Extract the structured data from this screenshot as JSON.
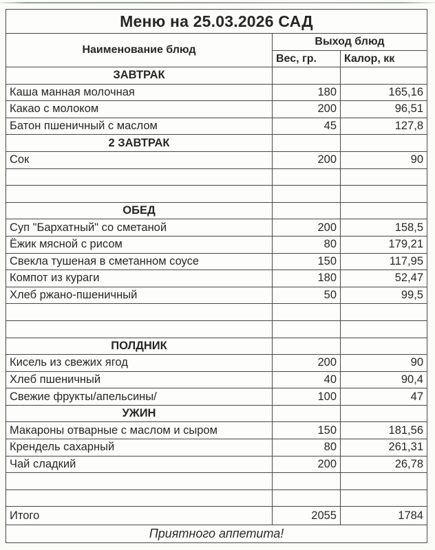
{
  "title": "Меню на 25.03.2026 САД",
  "columns": {
    "name": "Наименование блюд",
    "output_group": "Выход блюд",
    "weight": "Вес, гр.",
    "calories": "Калор, кк"
  },
  "rows": [
    {
      "type": "section",
      "name": "ЗАВТРАК"
    },
    {
      "type": "item",
      "name": "Каша манная молочная",
      "weight": "180",
      "calories": "165,16"
    },
    {
      "type": "item",
      "name": "Какао с молоком",
      "weight": "200",
      "calories": "96,51"
    },
    {
      "type": "item",
      "name": "Батон пшеничный с маслом",
      "weight": "45",
      "calories": "127,8"
    },
    {
      "type": "section",
      "name": "2 ЗАВТРАК"
    },
    {
      "type": "item",
      "name": "Сок",
      "weight": "200",
      "calories": "90"
    },
    {
      "type": "empty"
    },
    {
      "type": "empty"
    },
    {
      "type": "section",
      "name": "ОБЕД"
    },
    {
      "type": "item",
      "name": "Суп \"Бархатный\" со сметаной",
      "weight": "200",
      "calories": "158,5"
    },
    {
      "type": "item",
      "name": "Ёжик мясной с рисом",
      "weight": "80",
      "calories": "179,21"
    },
    {
      "type": "item",
      "name": "Свекла тушеная в сметанном соусе",
      "weight": "150",
      "calories": "117,95"
    },
    {
      "type": "item",
      "name": "Компот из кураги",
      "weight": "180",
      "calories": "52,47"
    },
    {
      "type": "item",
      "name": "Хлеб ржано-пшеничный",
      "weight": "50",
      "calories": "99,5"
    },
    {
      "type": "empty"
    },
    {
      "type": "empty"
    },
    {
      "type": "section",
      "name": "ПОЛДНИК"
    },
    {
      "type": "item",
      "name": "Кисель из свежих ягод",
      "weight": "200",
      "calories": "90"
    },
    {
      "type": "item",
      "name": "Хлеб пшеничный",
      "weight": "40",
      "calories": "90,4"
    },
    {
      "type": "item",
      "name": "Свежие фрукты/апельсины/",
      "weight": "100",
      "calories": "47"
    },
    {
      "type": "section",
      "name": "УЖИН"
    },
    {
      "type": "item",
      "name": "Макароны отварные с маслом и сыром",
      "weight": "150",
      "calories": "181,56"
    },
    {
      "type": "item",
      "name": "Крендель сахарный",
      "weight": "80",
      "calories": "261,31"
    },
    {
      "type": "item",
      "name": "Чай сладкий",
      "weight": "200",
      "calories": "26,78"
    },
    {
      "type": "empty"
    },
    {
      "type": "empty"
    },
    {
      "type": "total",
      "name": "Итого",
      "weight": "2055",
      "calories": "1784"
    }
  ],
  "footer": "Приятного аппетита!",
  "colors": {
    "border": "#474747",
    "text": "#272727",
    "background": "#fbfbf8",
    "scan_edge_green": "#466e55"
  }
}
